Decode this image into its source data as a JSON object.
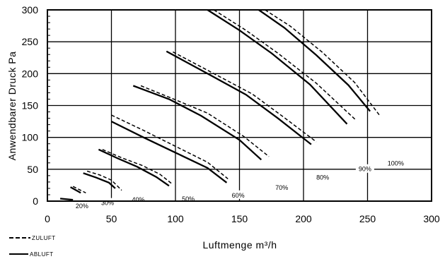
{
  "chart_data": {
    "type": "line",
    "xlabel": "Luftmenge m³/h",
    "ylabel": "Anwendbarer Druck Pa",
    "xlim": [
      0,
      300
    ],
    "ylim": [
      0,
      300
    ],
    "x_ticks": [
      0,
      50,
      100,
      150,
      200,
      250,
      300
    ],
    "y_ticks": [
      0,
      50,
      100,
      150,
      200,
      250,
      300
    ],
    "grid": true,
    "legend": [
      {
        "label": "ZULUFT",
        "style": "dashed"
      },
      {
        "label": "ABLUFT",
        "style": "solid"
      }
    ],
    "curve_labels": [
      {
        "text": "20%",
        "x": 27,
        "y": -9
      },
      {
        "text": "30%",
        "x": 47,
        "y": -4
      },
      {
        "text": "40%",
        "x": 71,
        "y": 1
      },
      {
        "text": "50%",
        "x": 110,
        "y": 2
      },
      {
        "text": "60%",
        "x": 149,
        "y": 8
      },
      {
        "text": "70%",
        "x": 183,
        "y": 20
      },
      {
        "text": "80%",
        "x": 215,
        "y": 36
      },
      {
        "text": "90%",
        "x": 248,
        "y": 49
      },
      {
        "text": "100%",
        "x": 272,
        "y": 58
      }
    ],
    "series": [
      {
        "style": "solid",
        "curve": "20%",
        "points": [
          [
            10,
            4
          ],
          [
            20,
            2
          ]
        ]
      },
      {
        "style": "solid",
        "curve": "20%",
        "points": [
          [
            18,
            22
          ],
          [
            26,
            13
          ]
        ]
      },
      {
        "style": "dashed",
        "curve": "20%",
        "points": [
          [
            20,
            23
          ],
          [
            30,
            13
          ]
        ]
      },
      {
        "style": "solid",
        "curve": "30%",
        "points": [
          [
            28,
            44
          ],
          [
            38,
            37
          ],
          [
            48,
            29
          ],
          [
            53,
            20
          ]
        ]
      },
      {
        "style": "dashed",
        "curve": "30%",
        "points": [
          [
            31,
            47
          ],
          [
            41,
            41
          ],
          [
            50,
            33
          ],
          [
            58,
            17
          ]
        ]
      },
      {
        "style": "solid",
        "curve": "40%",
        "points": [
          [
            40,
            81
          ],
          [
            55,
            67
          ],
          [
            70,
            54
          ],
          [
            85,
            38
          ],
          [
            95,
            24
          ]
        ]
      },
      {
        "style": "dashed",
        "curve": "40%",
        "points": [
          [
            43,
            81
          ],
          [
            58,
            68
          ],
          [
            74,
            56
          ],
          [
            88,
            42
          ],
          [
            98,
            26
          ]
        ]
      },
      {
        "style": "solid",
        "curve": "50%",
        "points": [
          [
            50,
            125
          ],
          [
            75,
            100
          ],
          [
            100,
            76
          ],
          [
            125,
            52
          ],
          [
            140,
            29
          ]
        ]
      },
      {
        "style": "dashed",
        "curve": "50%",
        "points": [
          [
            50,
            135
          ],
          [
            75,
            111
          ],
          [
            100,
            86
          ],
          [
            125,
            61
          ],
          [
            141,
            35
          ]
        ]
      },
      {
        "style": "solid",
        "curve": "60%",
        "points": [
          [
            67,
            181
          ],
          [
            95,
            160
          ],
          [
            120,
            134
          ],
          [
            150,
            96
          ],
          [
            167,
            65
          ]
        ]
      },
      {
        "style": "dashed",
        "curve": "60%",
        "points": [
          [
            73,
            181
          ],
          [
            100,
            159
          ],
          [
            125,
            138
          ],
          [
            153,
            102
          ],
          [
            173,
            70
          ]
        ]
      },
      {
        "style": "solid",
        "curve": "70%",
        "points": [
          [
            93,
            235
          ],
          [
            125,
            200
          ],
          [
            155,
            167
          ],
          [
            180,
            130
          ],
          [
            206,
            89
          ]
        ]
      },
      {
        "style": "dashed",
        "curve": "70%",
        "points": [
          [
            98,
            234
          ],
          [
            130,
            200
          ],
          [
            160,
            168
          ],
          [
            185,
            131
          ],
          [
            210,
            93
          ]
        ]
      },
      {
        "style": "solid",
        "curve": "80%",
        "points": [
          [
            125,
            300
          ],
          [
            150,
            268
          ],
          [
            175,
            232
          ],
          [
            205,
            183
          ],
          [
            234,
            121
          ]
        ]
      },
      {
        "style": "dashed",
        "curve": "80%",
        "points": [
          [
            130,
            300
          ],
          [
            155,
            268
          ],
          [
            180,
            232
          ],
          [
            210,
            185
          ],
          [
            241,
            127
          ]
        ]
      },
      {
        "style": "solid",
        "curve": "90%",
        "points": [
          [
            165,
            300
          ],
          [
            185,
            272
          ],
          [
            210,
            229
          ],
          [
            235,
            182
          ],
          [
            252,
            141
          ]
        ]
      },
      {
        "style": "dashed",
        "curve": "90%",
        "points": [
          [
            170,
            300
          ],
          [
            190,
            274
          ],
          [
            215,
            233
          ],
          [
            240,
            186
          ],
          [
            260,
            133
          ]
        ]
      }
    ]
  }
}
